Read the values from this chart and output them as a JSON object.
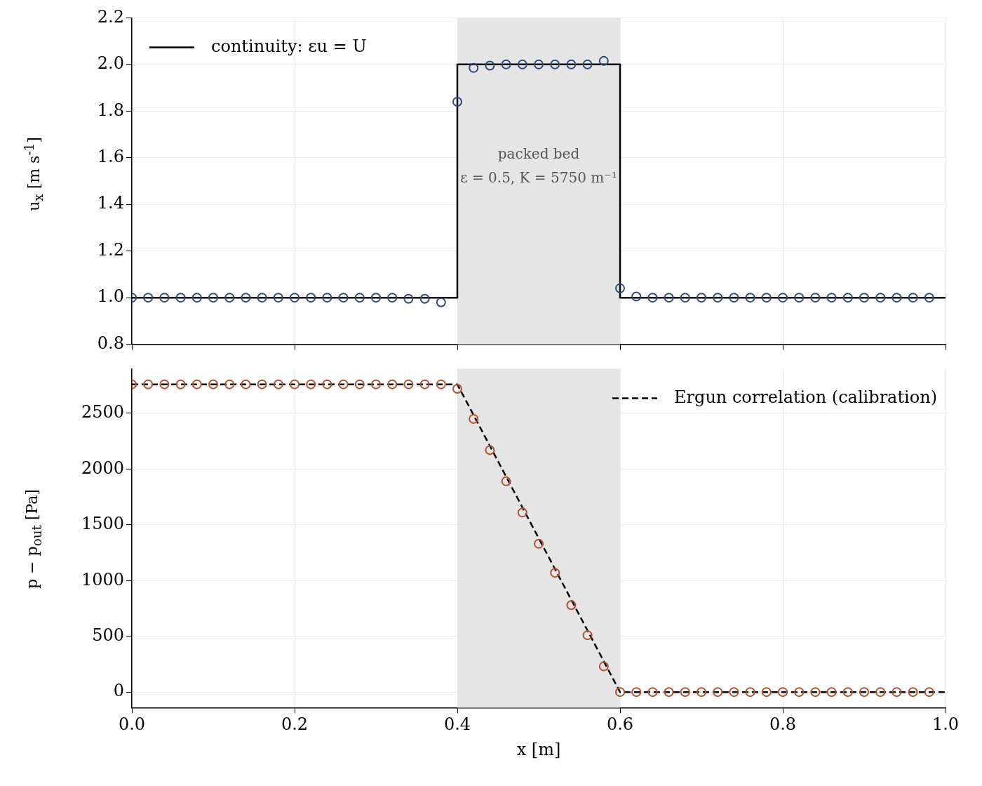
{
  "chart_data": [
    {
      "type": "line",
      "ylabel": "u$_{x}$ [m s$^{-1}$]",
      "xlim": [
        0,
        1
      ],
      "xticks": [
        0,
        0.2,
        0.4,
        0.6,
        0.8,
        1
      ],
      "ylim": [
        0.8,
        2.2
      ],
      "yticks": [
        0.8,
        {
          "value": 1,
          "label": "1.0"
        },
        1.2,
        1.4,
        1.6,
        1.8,
        {
          "value": 2,
          "label": "2.0"
        },
        2.2
      ],
      "grid": true,
      "legend": "top left",
      "tick_labels": "y",
      "bands": [
        {
          "axis": "x",
          "from": 0.4,
          "to": 0.6,
          "color": "#e5e5e5"
        }
      ],
      "annotations": [
        "packed bed",
        "ε = 0.5, K = 5750 m⁻¹"
      ],
      "series": [
        {
          "name": "continuity: εu = U",
          "color": "#000000",
          "marker": "none",
          "line_style": "solid",
          "x": [
            0,
            0.4,
            0.4,
            0.6,
            0.6,
            1.0
          ],
          "values": [
            1,
            1,
            2,
            2,
            1,
            1
          ]
        },
        {
          "type": "scatter",
          "color": "#2b4a7e",
          "marker": "circle",
          "x": [
            0,
            0.02,
            0.04,
            0.06,
            0.08,
            0.1,
            0.12,
            0.14,
            0.16,
            0.18,
            0.2,
            0.22,
            0.24,
            0.26,
            0.28,
            0.3,
            0.32,
            0.34,
            0.36,
            0.38,
            0.4,
            0.42,
            0.44,
            0.46,
            0.48,
            0.5,
            0.52,
            0.54,
            0.56,
            0.58,
            0.6,
            0.62,
            0.64,
            0.66,
            0.68,
            0.7,
            0.72,
            0.74,
            0.76,
            0.78,
            0.8,
            0.82,
            0.84,
            0.86,
            0.88,
            0.9,
            0.92,
            0.94,
            0.96,
            0.98
          ],
          "values": [
            1,
            1,
            1,
            1,
            1,
            1,
            1,
            1,
            1,
            1,
            1,
            1,
            1,
            1,
            1,
            1,
            1,
            0.995,
            0.995,
            0.98,
            1.84,
            1.985,
            1.995,
            2,
            2,
            2,
            2,
            2,
            2,
            2.015,
            1.04,
            1.005,
            1,
            1,
            1,
            1,
            1,
            1,
            1,
            1,
            1,
            1,
            1,
            1,
            1,
            1,
            1,
            1,
            1,
            1
          ]
        }
      ]
    },
    {
      "type": "line",
      "xlabel": "x [m]",
      "ylabel": "p − p$_{out}$ [Pa]",
      "xlim": [
        0,
        1
      ],
      "xticks": [
        {
          "value": 0,
          "label": "0.0"
        },
        0.2,
        0.4,
        0.6,
        0.8,
        {
          "value": 1,
          "label": "1.0"
        }
      ],
      "ylim": [
        -140,
        2900
      ],
      "yticks": [
        0,
        500,
        1000,
        1500,
        2000,
        2500
      ],
      "grid": true,
      "legend": "top right",
      "bands": [
        {
          "axis": "x",
          "from": 0.4,
          "to": 0.6,
          "color": "#e5e5e5"
        }
      ],
      "series": [
        {
          "name": "Ergun correlation (calibration)",
          "color": "#000000",
          "marker": "none",
          "line_style": "dashed",
          "x": [
            0,
            0.4,
            0.6,
            1.0
          ],
          "values": [
            2760,
            2760,
            0,
            0
          ]
        },
        {
          "type": "scatter",
          "color": "#b5502a",
          "marker": "circle",
          "x": [
            0,
            0.02,
            0.04,
            0.06,
            0.08,
            0.1,
            0.12,
            0.14,
            0.16,
            0.18,
            0.2,
            0.22,
            0.24,
            0.26,
            0.28,
            0.3,
            0.32,
            0.34,
            0.36,
            0.38,
            0.4,
            0.42,
            0.44,
            0.46,
            0.48,
            0.5,
            0.52,
            0.54,
            0.56,
            0.58,
            0.6,
            0.62,
            0.64,
            0.66,
            0.68,
            0.7,
            0.72,
            0.74,
            0.76,
            0.78,
            0.8,
            0.82,
            0.84,
            0.86,
            0.88,
            0.9,
            0.92,
            0.94,
            0.96,
            0.98
          ],
          "values": [
            2760,
            2760,
            2760,
            2760,
            2760,
            2760,
            2760,
            2760,
            2760,
            2760,
            2760,
            2760,
            2760,
            2760,
            2760,
            2760,
            2760,
            2760,
            2760,
            2760,
            2720,
            2450,
            2170,
            1890,
            1610,
            1330,
            1070,
            780,
            510,
            230,
            0,
            0,
            0,
            0,
            0,
            0,
            0,
            0,
            0,
            0,
            0,
            0,
            0,
            0,
            0,
            0,
            0,
            0,
            0,
            0
          ]
        }
      ]
    }
  ]
}
